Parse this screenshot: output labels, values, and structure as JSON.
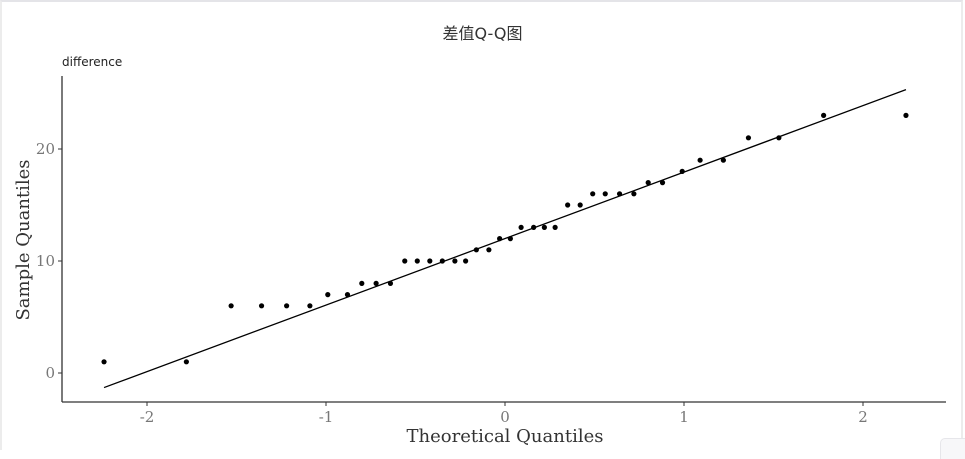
{
  "title": "差值Q-Q图",
  "subtitle": "difference",
  "colors": {
    "points": "#000000",
    "line": "#000000",
    "axis": "#333333",
    "tick_text": "#777777"
  },
  "chart_data": {
    "type": "scatter",
    "title": "差值Q-Q图",
    "subtitle": "difference",
    "xlabel": "Theoretical Quantiles",
    "ylabel": "Sample Quantiles",
    "xlim": [
      -2.5,
      2.45
    ],
    "ylim": [
      -2.6,
      26.5
    ],
    "xticks": [
      -2,
      -1,
      0,
      1,
      2
    ],
    "yticks": [
      0,
      10,
      20
    ],
    "grid": false,
    "legend": null,
    "points": {
      "x": [
        -2.24,
        -1.78,
        -1.53,
        -1.36,
        -1.22,
        -1.09,
        -0.99,
        -0.88,
        -0.8,
        -0.72,
        -0.64,
        -0.56,
        -0.49,
        -0.42,
        -0.35,
        -0.28,
        -0.22,
        -0.16,
        -0.09,
        -0.03,
        0.03,
        0.09,
        0.16,
        0.22,
        0.28,
        0.35,
        0.42,
        0.49,
        0.56,
        0.64,
        0.72,
        0.8,
        0.88,
        0.99,
        1.09,
        1.22,
        1.36,
        1.53,
        1.78,
        2.24
      ],
      "y": [
        1,
        1,
        6,
        6,
        6,
        6,
        7,
        7,
        8,
        8,
        8,
        10,
        10,
        10,
        10,
        10,
        10,
        11,
        11,
        12,
        12,
        13,
        13,
        13,
        13,
        15,
        15,
        16,
        16,
        16,
        16,
        17,
        17,
        18,
        19,
        19,
        21,
        21,
        23,
        23
      ]
    },
    "reference_line": {
      "x": [
        -2.24,
        2.24
      ],
      "y": [
        -1.3,
        25.3
      ]
    }
  }
}
